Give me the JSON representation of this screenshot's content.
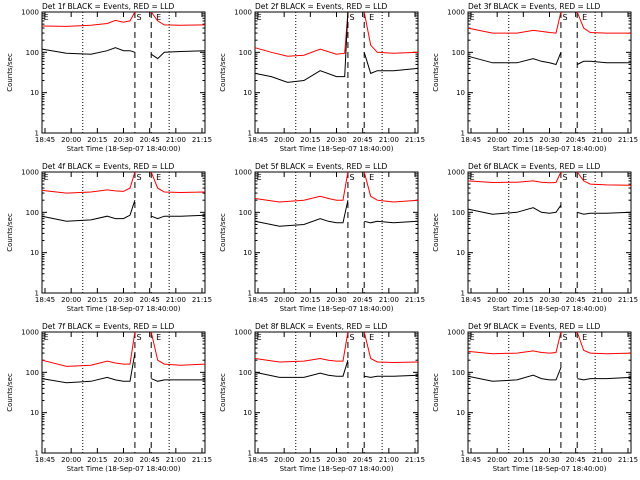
{
  "chart_data": {
    "type": "line",
    "x_ticks": [
      "18:45",
      "20:00",
      "20:15",
      "20:30",
      "20:45",
      "21:00",
      "21:15"
    ],
    "y_ticks": [
      "1",
      "10",
      "100",
      "1000"
    ],
    "y_scale": "log",
    "ylim": [
      1,
      1000
    ],
    "xlabel": "Start Time (18-Sep-07 18:40:00)",
    "ylabel": "Counts/sec",
    "markers": [
      "E",
      "S",
      "E"
    ],
    "x_range_min": [
      -5,
      95
    ],
    "dotted_lines_min": [
      20,
      73
    ],
    "dashed_lines_min": [
      52,
      62
    ],
    "colors": {
      "events": "#000000",
      "lld": "#ff0000"
    },
    "panels": [
      {
        "title": "Det 1f BLACK = Events, RED = LLD",
        "red": {
          "t": [
            -5,
            10,
            25,
            35,
            40,
            45,
            49,
            52,
            54,
            56,
            60,
            62,
            66,
            70,
            80,
            95
          ],
          "v": [
            450,
            440,
            470,
            520,
            620,
            560,
            600,
            1000,
            0,
            0,
            0,
            1000,
            600,
            480,
            470,
            480
          ]
        },
        "black": {
          "t": [
            -5,
            10,
            25,
            35,
            40,
            45,
            49,
            52,
            54,
            56,
            60,
            62,
            66,
            70,
            80,
            95
          ],
          "v": [
            120,
            95,
            90,
            110,
            130,
            110,
            110,
            100,
            0,
            0,
            0,
            90,
            70,
            100,
            105,
            110
          ]
        }
      },
      {
        "title": "Det 2f BLACK = Events, RED = LLD",
        "red": {
          "t": [
            -5,
            5,
            15,
            25,
            35,
            45,
            50,
            52,
            54,
            56,
            60,
            62,
            66,
            70,
            80,
            95
          ],
          "v": [
            130,
            100,
            80,
            85,
            120,
            90,
            95,
            1000,
            0,
            0,
            0,
            1000,
            150,
            100,
            95,
            100
          ]
        },
        "black": {
          "t": [
            -5,
            5,
            15,
            25,
            35,
            45,
            50,
            52,
            54,
            56,
            60,
            62,
            66,
            70,
            80,
            95
          ],
          "v": [
            30,
            25,
            18,
            20,
            35,
            25,
            25,
            1000,
            0,
            0,
            0,
            100,
            30,
            35,
            35,
            40
          ]
        }
      },
      {
        "title": "Det 3f BLACK = Events, RED = LLD",
        "red": {
          "t": [
            -5,
            10,
            25,
            35,
            40,
            45,
            49,
            52,
            54,
            56,
            60,
            62,
            66,
            70,
            80,
            95
          ],
          "v": [
            400,
            300,
            300,
            350,
            330,
            310,
            300,
            1000,
            0,
            0,
            0,
            1000,
            400,
            310,
            300,
            300
          ]
        },
        "black": {
          "t": [
            -5,
            10,
            25,
            35,
            40,
            45,
            49,
            52,
            54,
            56,
            60,
            62,
            66,
            70,
            80,
            95
          ],
          "v": [
            80,
            55,
            55,
            70,
            60,
            55,
            50,
            100,
            0,
            0,
            0,
            50,
            60,
            60,
            55,
            55
          ]
        }
      },
      {
        "title": "Det 4f BLACK = Events, RED = LLD",
        "red": {
          "t": [
            -5,
            10,
            25,
            35,
            40,
            45,
            49,
            52,
            54,
            56,
            60,
            62,
            66,
            70,
            80,
            95
          ],
          "v": [
            350,
            300,
            320,
            360,
            340,
            330,
            400,
            1000,
            0,
            0,
            0,
            1000,
            400,
            320,
            310,
            320
          ]
        },
        "black": {
          "t": [
            -5,
            10,
            25,
            35,
            40,
            45,
            49,
            52,
            54,
            56,
            60,
            62,
            66,
            70,
            80,
            95
          ],
          "v": [
            80,
            60,
            65,
            80,
            70,
            70,
            85,
            200,
            0,
            0,
            0,
            80,
            70,
            80,
            80,
            85
          ]
        }
      },
      {
        "title": "Det 5f BLACK = Events, RED = LLD",
        "red": {
          "t": [
            -5,
            10,
            25,
            35,
            40,
            45,
            49,
            52,
            54,
            56,
            60,
            62,
            66,
            70,
            80,
            95
          ],
          "v": [
            220,
            180,
            200,
            250,
            220,
            200,
            200,
            1000,
            0,
            0,
            0,
            1000,
            250,
            200,
            180,
            200
          ]
        },
        "black": {
          "t": [
            -5,
            10,
            25,
            35,
            40,
            45,
            49,
            52,
            54,
            56,
            60,
            62,
            66,
            70,
            80,
            95
          ],
          "v": [
            60,
            45,
            50,
            70,
            60,
            55,
            55,
            200,
            0,
            0,
            0,
            60,
            55,
            60,
            55,
            60
          ]
        }
      },
      {
        "title": "Det 6f BLACK = Events, RED = LLD",
        "red": {
          "t": [
            -5,
            10,
            25,
            35,
            40,
            45,
            49,
            52,
            54,
            56,
            60,
            62,
            66,
            70,
            80,
            95
          ],
          "v": [
            600,
            550,
            560,
            600,
            560,
            540,
            550,
            1000,
            0,
            0,
            0,
            1000,
            600,
            500,
            480,
            470
          ]
        },
        "black": {
          "t": [
            -5,
            10,
            25,
            35,
            40,
            45,
            49,
            52,
            54,
            56,
            60,
            62,
            66,
            70,
            80,
            95
          ],
          "v": [
            120,
            90,
            100,
            130,
            100,
            95,
            100,
            150,
            0,
            0,
            0,
            100,
            90,
            95,
            95,
            100
          ]
        }
      },
      {
        "title": "Det 7f BLACK = Events, RED = LLD",
        "red": {
          "t": [
            -5,
            10,
            25,
            35,
            40,
            45,
            49,
            52,
            54,
            56,
            60,
            62,
            66,
            70,
            80,
            95
          ],
          "v": [
            200,
            140,
            150,
            190,
            170,
            160,
            160,
            1000,
            0,
            0,
            0,
            1000,
            200,
            160,
            150,
            160
          ]
        },
        "black": {
          "t": [
            -5,
            10,
            25,
            35,
            40,
            45,
            49,
            52,
            54,
            56,
            60,
            62,
            66,
            70,
            80,
            95
          ],
          "v": [
            70,
            55,
            60,
            75,
            65,
            60,
            60,
            300,
            0,
            0,
            0,
            70,
            60,
            65,
            65,
            65
          ]
        }
      },
      {
        "title": "Det 8f BLACK = Events, RED = LLD",
        "red": {
          "t": [
            -5,
            10,
            25,
            35,
            40,
            45,
            49,
            52,
            54,
            56,
            60,
            62,
            66,
            70,
            80,
            95
          ],
          "v": [
            220,
            180,
            190,
            220,
            200,
            190,
            190,
            1000,
            0,
            0,
            0,
            1000,
            220,
            180,
            175,
            180
          ]
        },
        "black": {
          "t": [
            -5,
            10,
            25,
            35,
            40,
            45,
            49,
            52,
            54,
            56,
            60,
            62,
            66,
            70,
            80,
            95
          ],
          "v": [
            100,
            75,
            75,
            95,
            85,
            80,
            80,
            200,
            0,
            0,
            0,
            80,
            75,
            80,
            80,
            85
          ]
        }
      },
      {
        "title": "Det 9f BLACK = Events, RED = LLD",
        "red": {
          "t": [
            -5,
            10,
            25,
            35,
            40,
            45,
            49,
            52,
            54,
            56,
            60,
            62,
            66,
            70,
            80,
            95
          ],
          "v": [
            330,
            290,
            300,
            340,
            310,
            300,
            310,
            1000,
            0,
            0,
            0,
            1000,
            350,
            300,
            290,
            300
          ]
        },
        "black": {
          "t": [
            -5,
            10,
            25,
            35,
            40,
            45,
            49,
            52,
            54,
            56,
            60,
            62,
            66,
            70,
            80,
            95
          ],
          "v": [
            80,
            60,
            65,
            85,
            70,
            65,
            65,
            130,
            0,
            0,
            0,
            70,
            65,
            70,
            70,
            75
          ]
        }
      }
    ]
  }
}
